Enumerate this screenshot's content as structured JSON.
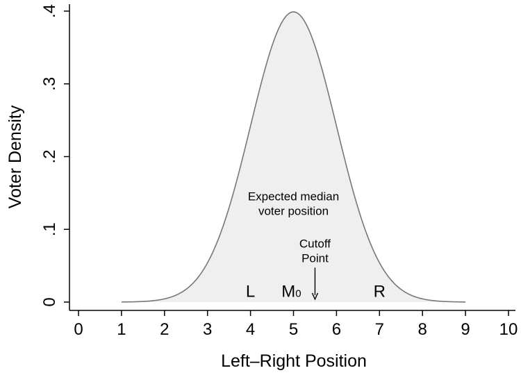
{
  "chart_data": {
    "type": "area",
    "title": "",
    "xlabel": "Left–Right Position",
    "ylabel": "Voter Density",
    "xlim": [
      0,
      10
    ],
    "ylim": [
      0,
      0.4
    ],
    "x_ticks": [
      {
        "value": 0,
        "label": "0"
      },
      {
        "value": 1,
        "label": "1"
      },
      {
        "value": 2,
        "label": "2"
      },
      {
        "value": 3,
        "label": "3"
      },
      {
        "value": 4,
        "label": "4"
      },
      {
        "value": 5,
        "label": "5"
      },
      {
        "value": 6,
        "label": "6"
      },
      {
        "value": 7,
        "label": "7"
      },
      {
        "value": 8,
        "label": "8"
      },
      {
        "value": 9,
        "label": "9"
      },
      {
        "value": 10,
        "label": "10"
      }
    ],
    "y_ticks": [
      {
        "value": 0,
        "label": "0"
      },
      {
        "value": 0.1,
        "label": ".1"
      },
      {
        "value": 0.2,
        "label": ".2"
      },
      {
        "value": 0.3,
        "label": ".3"
      },
      {
        "value": 0.4,
        "label": ".4"
      }
    ],
    "series": [
      {
        "distribution": "normal",
        "mean": 5,
        "sd": 1,
        "x_range": [
          1,
          9
        ],
        "points": [
          [
            1.0,
            0.0001
          ],
          [
            1.5,
            0.0009
          ],
          [
            2.0,
            0.0044
          ],
          [
            2.5,
            0.0175
          ],
          [
            3.0,
            0.054
          ],
          [
            3.5,
            0.1295
          ],
          [
            4.0,
            0.242
          ],
          [
            4.5,
            0.3521
          ],
          [
            5.0,
            0.3989
          ],
          [
            5.5,
            0.3521
          ],
          [
            6.0,
            0.242
          ],
          [
            6.5,
            0.1295
          ],
          [
            7.0,
            0.054
          ],
          [
            7.5,
            0.0175
          ],
          [
            8.0,
            0.0044
          ],
          [
            8.5,
            0.0009
          ],
          [
            9.0,
            0.0001
          ]
        ]
      }
    ],
    "annotations": [
      {
        "text_lines": [
          "Expected median",
          "voter position"
        ],
        "x": 5.0,
        "y": 0.12
      },
      {
        "text_lines": [
          "Cutoff",
          "Point"
        ],
        "x": 5.5,
        "y": 0.055,
        "arrow_to": [
          5.5,
          0.002
        ]
      }
    ],
    "markers": [
      {
        "text": "L",
        "x": 4.0,
        "y": 0.008
      },
      {
        "text": "M",
        "subscript": "0",
        "x": 4.95,
        "y": 0.008
      },
      {
        "text": "R",
        "x": 7.0,
        "y": 0.008
      }
    ],
    "colors": {
      "fill": "#efefef",
      "curve": "#777777",
      "axis": "#000000",
      "marker_faded": "#666666"
    }
  }
}
